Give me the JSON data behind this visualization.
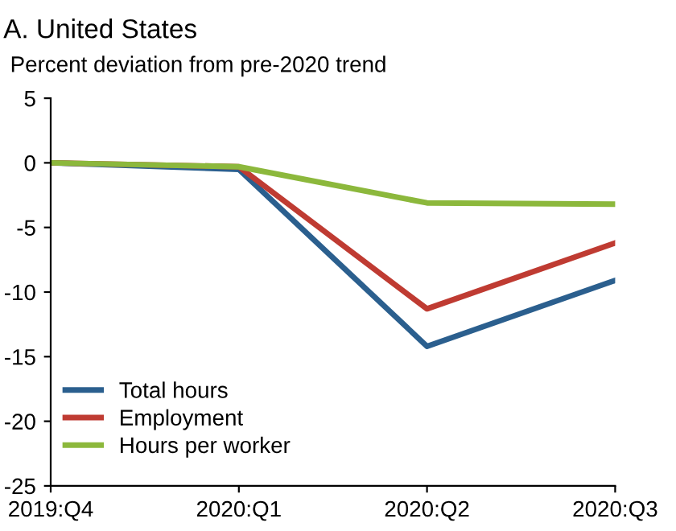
{
  "chart_data": {
    "type": "line",
    "title": "A. United States",
    "subtitle": "Percent deviation from pre-2020 trend",
    "categories": [
      "2019:Q4",
      "2020:Q1",
      "2020:Q2",
      "2020:Q3"
    ],
    "series": [
      {
        "name": "Total hours",
        "color": "#2b5f8e",
        "values": [
          0,
          -0.5,
          -14.2,
          -9.1
        ]
      },
      {
        "name": "Employment",
        "color": "#bf3b32",
        "values": [
          0,
          -0.3,
          -11.3,
          -6.2
        ]
      },
      {
        "name": "Hours per worker",
        "color": "#8cb83c",
        "values": [
          0,
          -0.3,
          -3.1,
          -3.2
        ]
      }
    ],
    "ylim": [
      -25,
      5
    ],
    "yticks": [
      -25,
      -20,
      -15,
      -10,
      -5,
      0,
      5
    ],
    "grid": false,
    "legend": "bottom left",
    "marker": "none",
    "line_style": "solid"
  }
}
